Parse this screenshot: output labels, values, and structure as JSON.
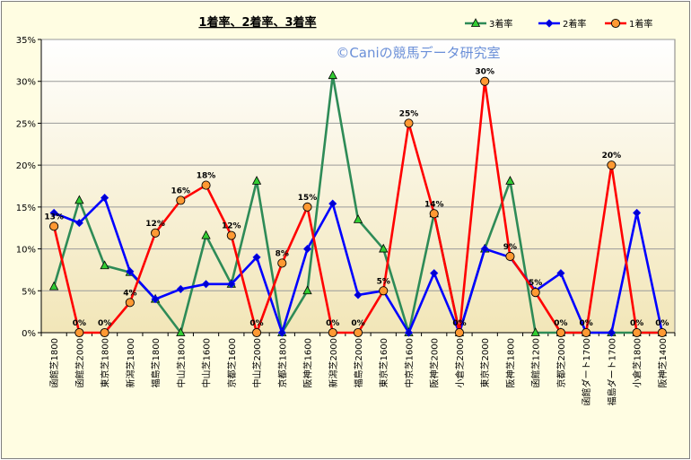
{
  "chart_data": {
    "type": "line",
    "title": "1着率、2着率、3着率",
    "watermark": "©Caniの競馬データ研究室",
    "xlabel": "",
    "ylabel": "",
    "ylim": [
      0,
      35
    ],
    "y_tick_values": [
      0,
      5,
      10,
      15,
      20,
      25,
      30,
      35
    ],
    "y_tick_labels": [
      "0%",
      "5%",
      "10%",
      "15%",
      "20%",
      "25%",
      "30%",
      "35%"
    ],
    "grid": true,
    "legend_position": "top-right",
    "categories": [
      "函館芝1800",
      "函館芝2000",
      "東京芝1800",
      "新潟芝1800",
      "福島芝1800",
      "中山芝1800",
      "中山芝1600",
      "京都芝1600",
      "中山芝2000",
      "京都芝1800",
      "阪神芝1600",
      "新潟芝2000",
      "福島芝2000",
      "東京芝1600",
      "中京芝1600",
      "阪神芝2000",
      "小倉芝2000",
      "東京芝2000",
      "阪神芝1800",
      "函館芝1200",
      "京都芝2000",
      "函館ダート1700",
      "福島ダート1700",
      "小倉芝1800",
      "阪神芝1400"
    ],
    "series": [
      {
        "name": "3着率",
        "color": "#2e8b57",
        "marker": "triangle",
        "marker_fill": "#33cc33",
        "values": [
          5.5,
          15.8,
          8.0,
          7.2,
          4.0,
          0,
          11.6,
          5.8,
          18.1,
          0,
          5.0,
          30.7,
          13.5,
          10.0,
          0,
          14.2,
          0,
          10.0,
          18.1,
          0,
          0,
          0,
          0,
          0,
          0
        ]
      },
      {
        "name": "2着率",
        "color": "#0000ff",
        "marker": "diamond",
        "marker_fill": "#0000cc",
        "values": [
          14.3,
          13.1,
          16.1,
          7.3,
          4.0,
          5.2,
          5.8,
          5.8,
          9.0,
          0,
          10.0,
          15.4,
          4.5,
          5.0,
          0,
          7.1,
          0,
          10.0,
          9.0,
          5.0,
          7.1,
          0,
          0,
          14.3,
          0
        ]
      },
      {
        "name": "1着率",
        "color": "#ff0000",
        "marker": "circle",
        "marker_fill": "#ff9933",
        "values": [
          12.7,
          0,
          0,
          3.6,
          11.9,
          15.8,
          17.6,
          11.6,
          0,
          8.3,
          15.0,
          0,
          0,
          5.0,
          25.0,
          14.2,
          0,
          30.0,
          9.1,
          4.8,
          0,
          0,
          20.0,
          0,
          0
        ]
      }
    ],
    "data_labels": [
      "13%",
      "0%",
      "0%",
      "4%",
      "12%",
      "16%",
      "18%",
      "12%",
      "0%",
      "8%",
      "15%",
      "0%",
      "0%",
      "5%",
      "25%",
      "14%",
      "0%",
      "30%",
      "9%",
      "5%",
      "0%",
      "0%",
      "20%",
      "0%",
      "0%"
    ]
  }
}
